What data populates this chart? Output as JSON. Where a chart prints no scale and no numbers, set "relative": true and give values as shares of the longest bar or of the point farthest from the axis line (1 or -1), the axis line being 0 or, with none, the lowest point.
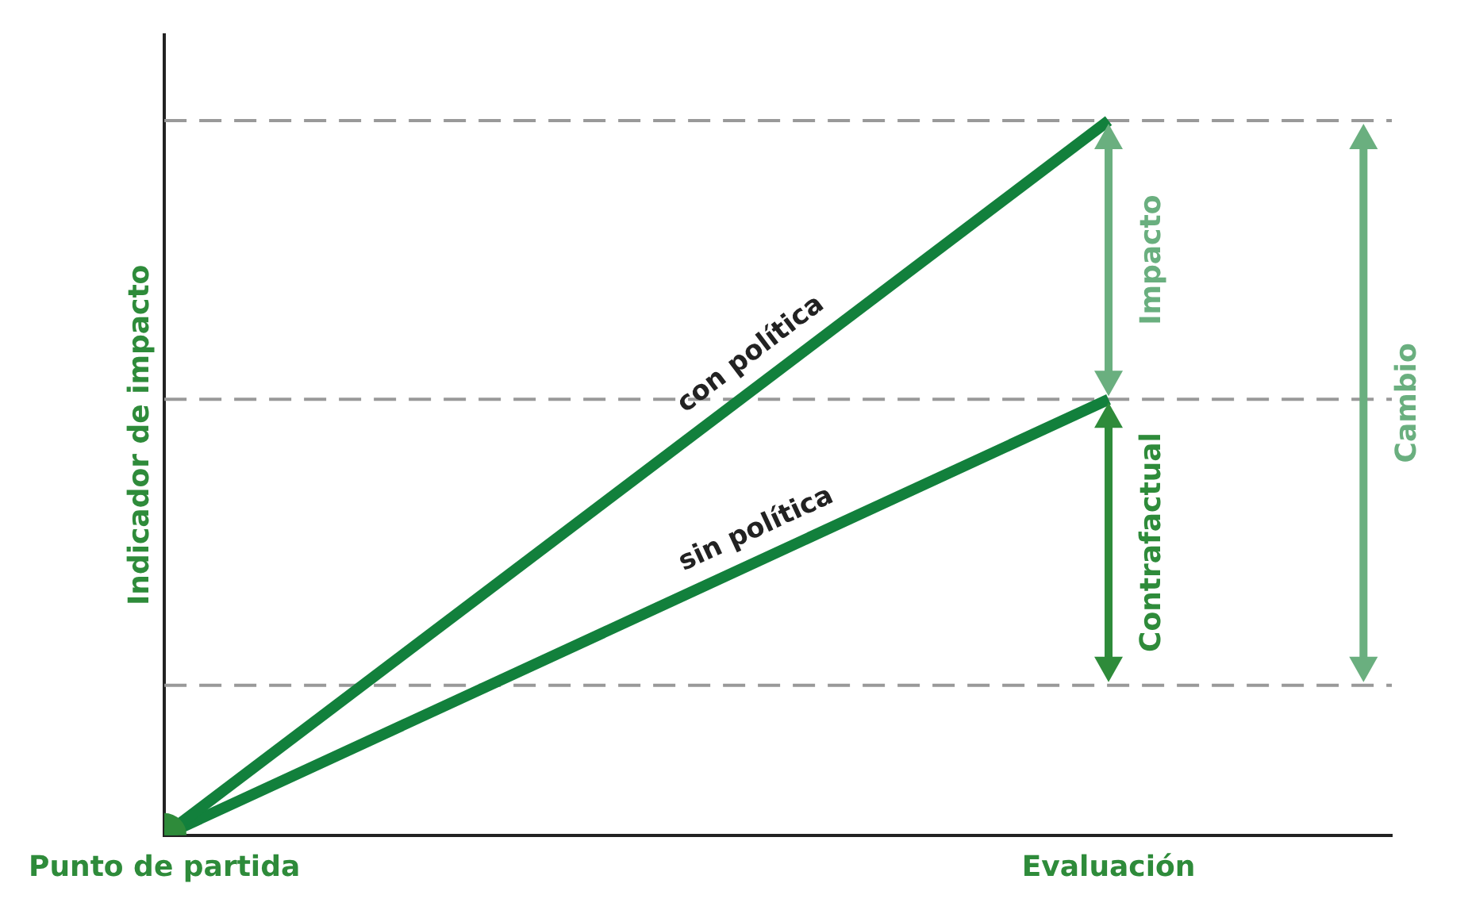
{
  "chart_data": {
    "type": "line",
    "relative": true,
    "ylabel": "Indicador de impacto",
    "categories": [
      "Punto de partida",
      "Evaluación"
    ],
    "series": [
      {
        "name": "con política",
        "color": "#12803c",
        "values": [
          0,
          1
        ]
      },
      {
        "name": "sin política",
        "color": "#12803c",
        "values": [
          0,
          0.61
        ]
      },
      {
        "type": "scatter",
        "color": "#2e8b3a",
        "marker": "circle",
        "values": [
          0,
          null
        ]
      }
    ],
    "ref_lines": [
      {
        "axis": "y",
        "value": 1,
        "color": "#999999",
        "line_style": "dashed"
      },
      {
        "axis": "y",
        "value": 0.61,
        "color": "#999999",
        "line_style": "dashed"
      },
      {
        "axis": "y",
        "value": 0.21,
        "color": "#999999",
        "line_style": "dashed"
      }
    ],
    "annotations": [
      "Impacto",
      "Contrafactual",
      "Cambio"
    ]
  }
}
